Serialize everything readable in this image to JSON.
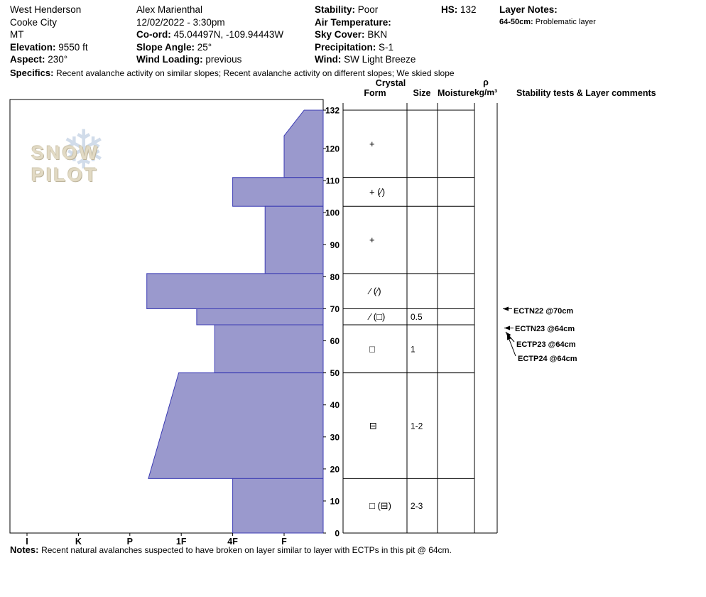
{
  "header": {
    "site": {
      "line1": "West Henderson",
      "line2": "Cooke City",
      "line3": "MT",
      "elevation_label": "Elevation:",
      "elevation_value": "9550 ft",
      "aspect_label": "Aspect:",
      "aspect_value": "230°"
    },
    "observer": {
      "name": "Alex Marienthal",
      "datetime": "12/02/2022 - 3:30pm",
      "coord_label": "Co-ord:",
      "coord_value": "45.04497N, -109.94443W",
      "slope_angle_label": "Slope Angle:",
      "slope_angle_value": "25°",
      "wind_loading_label": "Wind Loading:",
      "wind_loading_value": "previous"
    },
    "conditions": {
      "stability_label": "Stability:",
      "stability_value": "Poor",
      "air_temp_label": "Air Temperature:",
      "air_temp_value": "",
      "sky_label": "Sky Cover:",
      "sky_value": "BKN",
      "precip_label": "Precipitation:",
      "precip_value": "S-1",
      "wind_label": "Wind:",
      "wind_value": "SW Light Breeze"
    },
    "hs": {
      "label": "HS:",
      "value": "132"
    },
    "layer_notes": {
      "label": "Layer Notes:",
      "entry_range": "64-50cm:",
      "entry_text": "Problematic layer"
    },
    "specifics": {
      "label": "Specifics:",
      "text": "Recent avalanche activity on similar slopes; Recent avalanche activity on different slopes; We skied slope"
    }
  },
  "chart_data": {
    "type": "area",
    "subtype": "snow-profile-hardness",
    "title": "Snow pit hardness profile",
    "depth_axis": {
      "units": "cm",
      "min": 0,
      "max": 132,
      "ticks": [
        132,
        120,
        110,
        100,
        90,
        80,
        70,
        60,
        50,
        40,
        30,
        20,
        10,
        0
      ]
    },
    "hardness_axis": {
      "categories": [
        "I",
        "K",
        "P",
        "1F",
        "4F",
        "F"
      ],
      "note": "hand hardness, hardest at left"
    },
    "layers": [
      {
        "top_cm": 132,
        "bottom_cm": 111,
        "hand_hardness": "F",
        "left_edge": [
          [
            132,
            5.39
          ],
          [
            124,
            5.0
          ],
          [
            111,
            5.0
          ]
        ],
        "form": "+",
        "size": "",
        "moisture": ""
      },
      {
        "top_cm": 111,
        "bottom_cm": 102,
        "hand_hardness": "4F",
        "left_edge": [
          [
            111,
            4.0
          ],
          [
            102,
            4.0
          ]
        ],
        "form": "+ (∕)",
        "size": "",
        "moisture": ""
      },
      {
        "top_cm": 102,
        "bottom_cm": 81,
        "hand_hardness": "F-",
        "left_edge": [
          [
            102,
            4.63
          ],
          [
            81,
            4.63
          ]
        ],
        "form": "+",
        "size": "",
        "moisture": ""
      },
      {
        "top_cm": 81,
        "bottom_cm": 70,
        "hand_hardness": "P+",
        "left_edge": [
          [
            81,
            2.33
          ],
          [
            70,
            2.33
          ]
        ],
        "form": "∕ (∕)",
        "size": "",
        "moisture": ""
      },
      {
        "top_cm": 70,
        "bottom_cm": 65,
        "hand_hardness": "1F-",
        "left_edge": [
          [
            70,
            3.3
          ],
          [
            65,
            3.3
          ]
        ],
        "form": "∕ (□)",
        "size": "0.5",
        "moisture": ""
      },
      {
        "top_cm": 65,
        "bottom_cm": 50,
        "hand_hardness": "1F+",
        "left_edge": [
          [
            65,
            3.65
          ],
          [
            50,
            3.65
          ]
        ],
        "form": "□",
        "size": "1",
        "moisture": ""
      },
      {
        "top_cm": 50,
        "bottom_cm": 17,
        "hand_hardness": "1F to P+",
        "left_edge": [
          [
            50,
            2.95
          ],
          [
            17,
            2.36
          ]
        ],
        "form": "⊟",
        "size": "1-2",
        "moisture": ""
      },
      {
        "top_cm": 17,
        "bottom_cm": 0,
        "hand_hardness": "4F",
        "left_edge": [
          [
            17,
            4.0
          ],
          [
            0,
            4.0
          ]
        ],
        "form": "□ (⊟)",
        "size": "2-3",
        "moisture": ""
      }
    ],
    "table_headers": {
      "crystal": "Crystal",
      "form": "Form",
      "size": "Size",
      "moisture": "Moisture",
      "rho": "ρ",
      "rho_units": "kg/m³",
      "stability": "Stability tests & Layer comments"
    },
    "stability_tests": [
      {
        "label": "ECTN22 @70cm",
        "depth_cm": 70,
        "arrow": "horizontal"
      },
      {
        "label": "ECTN23 @64cm",
        "depth_cm": 64,
        "arrow": "horizontal"
      },
      {
        "label": "ECTP23 @64cm",
        "depth_cm": 64,
        "arrow": "diagonal"
      },
      {
        "label": "ECTP24 @64cm",
        "depth_cm": 64,
        "arrow": "diagonal"
      }
    ],
    "colors": {
      "layer_fill": "#9a99cd",
      "layer_stroke": "#3c3cb4",
      "grid": "#000000"
    },
    "logo": {
      "text": "SNOW PILOT",
      "snowflake": "❄"
    }
  },
  "notes": {
    "label": "Notes:",
    "text": "Recent natural avalanches suspected to have broken on layer similar to layer with ECTPs in this pit @ 64cm."
  }
}
